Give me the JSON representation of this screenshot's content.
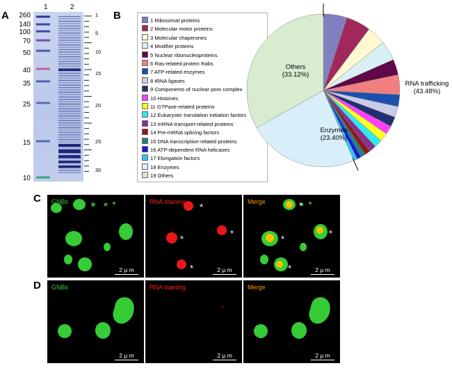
{
  "panel_A": {
    "letter": "A",
    "lane_labels": [
      "1",
      "2"
    ],
    "mw_markers": [
      "260",
      "140",
      "100",
      "70",
      "50",
      "40",
      "35",
      "25",
      "15",
      "10"
    ],
    "band_numbers": [
      "1",
      "5",
      "10",
      "15",
      "20",
      "25",
      "30"
    ]
  },
  "panel_B": {
    "letter": "B",
    "legend": [
      {
        "label": "1 Ribosomal proteins",
        "color": "#8080c0"
      },
      {
        "label": "2 Molecular motor proteins",
        "color": "#a0285a"
      },
      {
        "label": "3 Molecular chaperones",
        "color": "#fff8d0"
      },
      {
        "label": "4 Modifier proteins",
        "color": "#d8f0f4"
      },
      {
        "label": "5 Nuclear ribonucleoproteins",
        "color": "#600848"
      },
      {
        "label": "6 Ras-related protein Rabs",
        "color": "#f08080"
      },
      {
        "label": "7 ATP-related enzymes",
        "color": "#1a50b0"
      },
      {
        "label": "8 tRNA ligases",
        "color": "#c8cce8"
      },
      {
        "label": "9 Components of nuclear pore complex",
        "color": "#203070"
      },
      {
        "label": "10 Histones",
        "color": "#ff40ff"
      },
      {
        "label": "11 GTPase-related proteins",
        "color": "#ffff20"
      },
      {
        "label": "12 Eukaryotic translation initiation factors",
        "color": "#30e8f0"
      },
      {
        "label": "13 mRNA transport-related proteins",
        "color": "#883090"
      },
      {
        "label": "14 Pre-mRNA splicing factors",
        "color": "#901818"
      },
      {
        "label": "15 DNA transcription-related proteins",
        "color": "#208080"
      },
      {
        "label": "16 ATP-dependent RNA helicases",
        "color": "#1818e0"
      },
      {
        "label": "17 Elongation factors",
        "color": "#30c8f0"
      },
      {
        "label": "18 Enzymes",
        "color": "#d8eef8"
      },
      {
        "label": "19 Others",
        "color": "#d8ecd0"
      }
    ],
    "pie_labels": {
      "others": {
        "name": "Others",
        "pct": "(33.12%)"
      },
      "enzymes": {
        "name": "Enzymes",
        "pct": "(23.40%)"
      },
      "rna": {
        "name": "RNA trafficking",
        "pct": "(43.48%)"
      }
    }
  },
  "chart_data": {
    "type": "pie",
    "categories": [
      "Ribosomal proteins",
      "Molecular motor proteins",
      "Molecular chaperones",
      "Modifier proteins",
      "Nuclear ribonucleoproteins",
      "Ras-related protein Rabs",
      "ATP-related enzymes",
      "tRNA ligases",
      "Components of nuclear pore complex",
      "Histones",
      "GTPase-related proteins",
      "Eukaryotic translation initiation factors",
      "mRNA transport-related proteins",
      "Pre-mRNA splicing factors",
      "DNA transcription-related proteins",
      "ATP-dependent RNA helicases",
      "Elongation factors",
      "Enzymes",
      "Others"
    ],
    "values": [
      5.0,
      5.2,
      4.0,
      4.2,
      3.3,
      4.2,
      2.5,
      2.3,
      2.1,
      1.8,
      1.8,
      1.7,
      1.5,
      1.2,
      1.0,
      0.9,
      0.78,
      23.4,
      33.12
    ],
    "colors": [
      "#8080c0",
      "#a0285a",
      "#fff8d0",
      "#d8f0f4",
      "#600848",
      "#f08080",
      "#1a50b0",
      "#c8cce8",
      "#203070",
      "#ff40ff",
      "#ffff20",
      "#30e8f0",
      "#883090",
      "#901818",
      "#208080",
      "#1818e0",
      "#30c8f0",
      "#d8eef8",
      "#d8ecd0"
    ],
    "grouped_labels": [
      "Others (33.12%)",
      "Enzymes (23.40%)",
      "RNA trafficking (43.48%)"
    ]
  },
  "panel_C": {
    "letter": "C",
    "frames": [
      "GNBs",
      "RNA staining",
      "Merge"
    ],
    "scale": "2 μ m",
    "star": "*"
  },
  "panel_D": {
    "letter": "D",
    "frames": [
      "GNBs",
      "RNA staining",
      "Merge"
    ],
    "scale": "2 μ m"
  },
  "colors": {
    "green": "#40d040",
    "red": "#ff2020",
    "orange": "#ff9900"
  }
}
